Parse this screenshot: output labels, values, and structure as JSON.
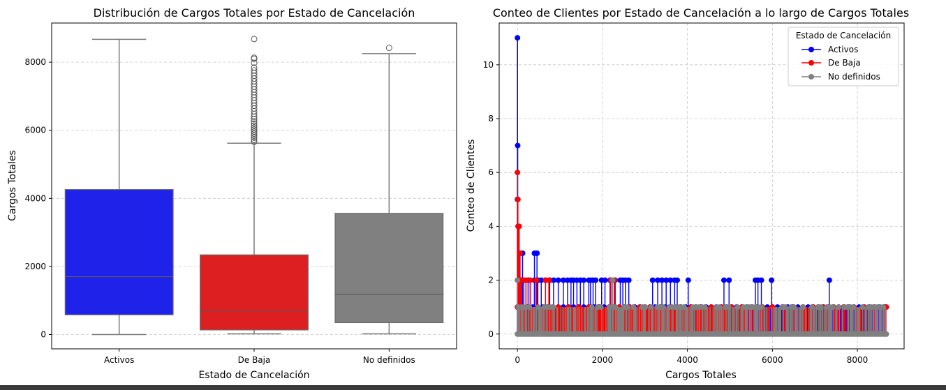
{
  "chart_data": [
    {
      "type": "box",
      "title": "Distribución de Cargos Totales por Estado de Cancelación",
      "xlabel": "Estado de Cancelación",
      "ylabel": "Cargos Totales",
      "ylim": [
        -420,
        9150
      ],
      "yticks": [
        0,
        2000,
        4000,
        6000,
        8000
      ],
      "grid": "y-dashed",
      "categories": [
        "Activos",
        "De Baja",
        "No definidos"
      ],
      "colors": [
        "#1f22e8",
        "#de1f22",
        "#808080"
      ],
      "boxes": [
        {
          "name": "Activos",
          "whisker_low": 0,
          "q1": 580,
          "median": 1700,
          "q3": 4260,
          "whisker_high": 8670,
          "outliers": []
        },
        {
          "name": "De Baja",
          "whisker_low": 20,
          "q1": 135,
          "median": 710,
          "q3": 2340,
          "whisker_high": 5620,
          "outliers": [
            5660,
            5720,
            5780,
            5840,
            5900,
            5960,
            6020,
            6080,
            6140,
            6200,
            6260,
            6330,
            6400,
            6480,
            6560,
            6640,
            6720,
            6800,
            6880,
            6960,
            7040,
            7120,
            7200,
            7280,
            7360,
            7440,
            7520,
            7600,
            7680,
            7760,
            7840,
            7980,
            8100,
            8130,
            8680
          ]
        },
        {
          "name": "No definidos",
          "whisker_low": 20,
          "q1": 350,
          "median": 1180,
          "q3": 3560,
          "whisker_high": 8250,
          "outliers": [
            8420
          ]
        }
      ]
    },
    {
      "type": "line",
      "title": "Conteo de Clientes por Estado de Cancelación a lo largo de Cargos Totales",
      "xlabel": "Cargos Totales",
      "ylabel": "Conteo de Clientes",
      "xlim": [
        -430,
        9100
      ],
      "ylim": [
        -0.55,
        11.55
      ],
      "xticks": [
        0,
        2000,
        4000,
        6000,
        8000
      ],
      "yticks": [
        0,
        2,
        4,
        6,
        8,
        10
      ],
      "grid": "both-dashed",
      "legend": {
        "title": "Estado de Cancelación",
        "position": "top-right"
      },
      "series": [
        {
          "name": "Activos",
          "color": "#0000ff",
          "spikes_2": [
            20,
            150,
            250,
            300,
            400,
            480,
            560,
            660,
            760,
            850,
            960,
            1080,
            1180,
            1260,
            1320,
            1400,
            1480,
            1560,
            1680,
            1720,
            1780,
            1840,
            1980,
            2060,
            2180,
            2300,
            2420,
            2480,
            2540,
            2620,
            3180,
            3300,
            3400,
            3500,
            3600,
            3700,
            3760,
            4020,
            4860,
            4980,
            5600,
            5660,
            5740,
            5980,
            7340
          ],
          "spikes_3": [
            120,
            400,
            460
          ],
          "spikes_1_from": 0,
          "spikes_1_to": 8680,
          "peaks": [
            [
              0,
              11
            ],
            [
              0,
              5
            ],
            [
              5,
              7
            ],
            [
              15,
              4
            ]
          ],
          "end_x": 8680
        },
        {
          "name": "De Baja",
          "color": "#ff0000",
          "peaks": [
            [
              0,
              6
            ],
            [
              10,
              5
            ],
            [
              20,
              4
            ],
            [
              40,
              4
            ],
            [
              60,
              3
            ],
            [
              80,
              2
            ],
            [
              100,
              2
            ],
            [
              200,
              2
            ],
            [
              300,
              2
            ],
            [
              440,
              2
            ],
            [
              660,
              2
            ],
            [
              740,
              2
            ],
            [
              2200,
              2
            ],
            [
              2280,
              2
            ]
          ],
          "dense_from": 0,
          "dense_to": 8680,
          "end_x": 8680
        },
        {
          "name": "No definidos",
          "color": "#808080",
          "peaks": [
            [
              0,
              2
            ],
            [
              20,
              1
            ],
            [
              100,
              1
            ],
            [
              200,
              1
            ],
            [
              2240,
              2
            ]
          ],
          "dense_from": 0,
          "dense_to": 8680,
          "end_x": 8680
        }
      ]
    }
  ]
}
